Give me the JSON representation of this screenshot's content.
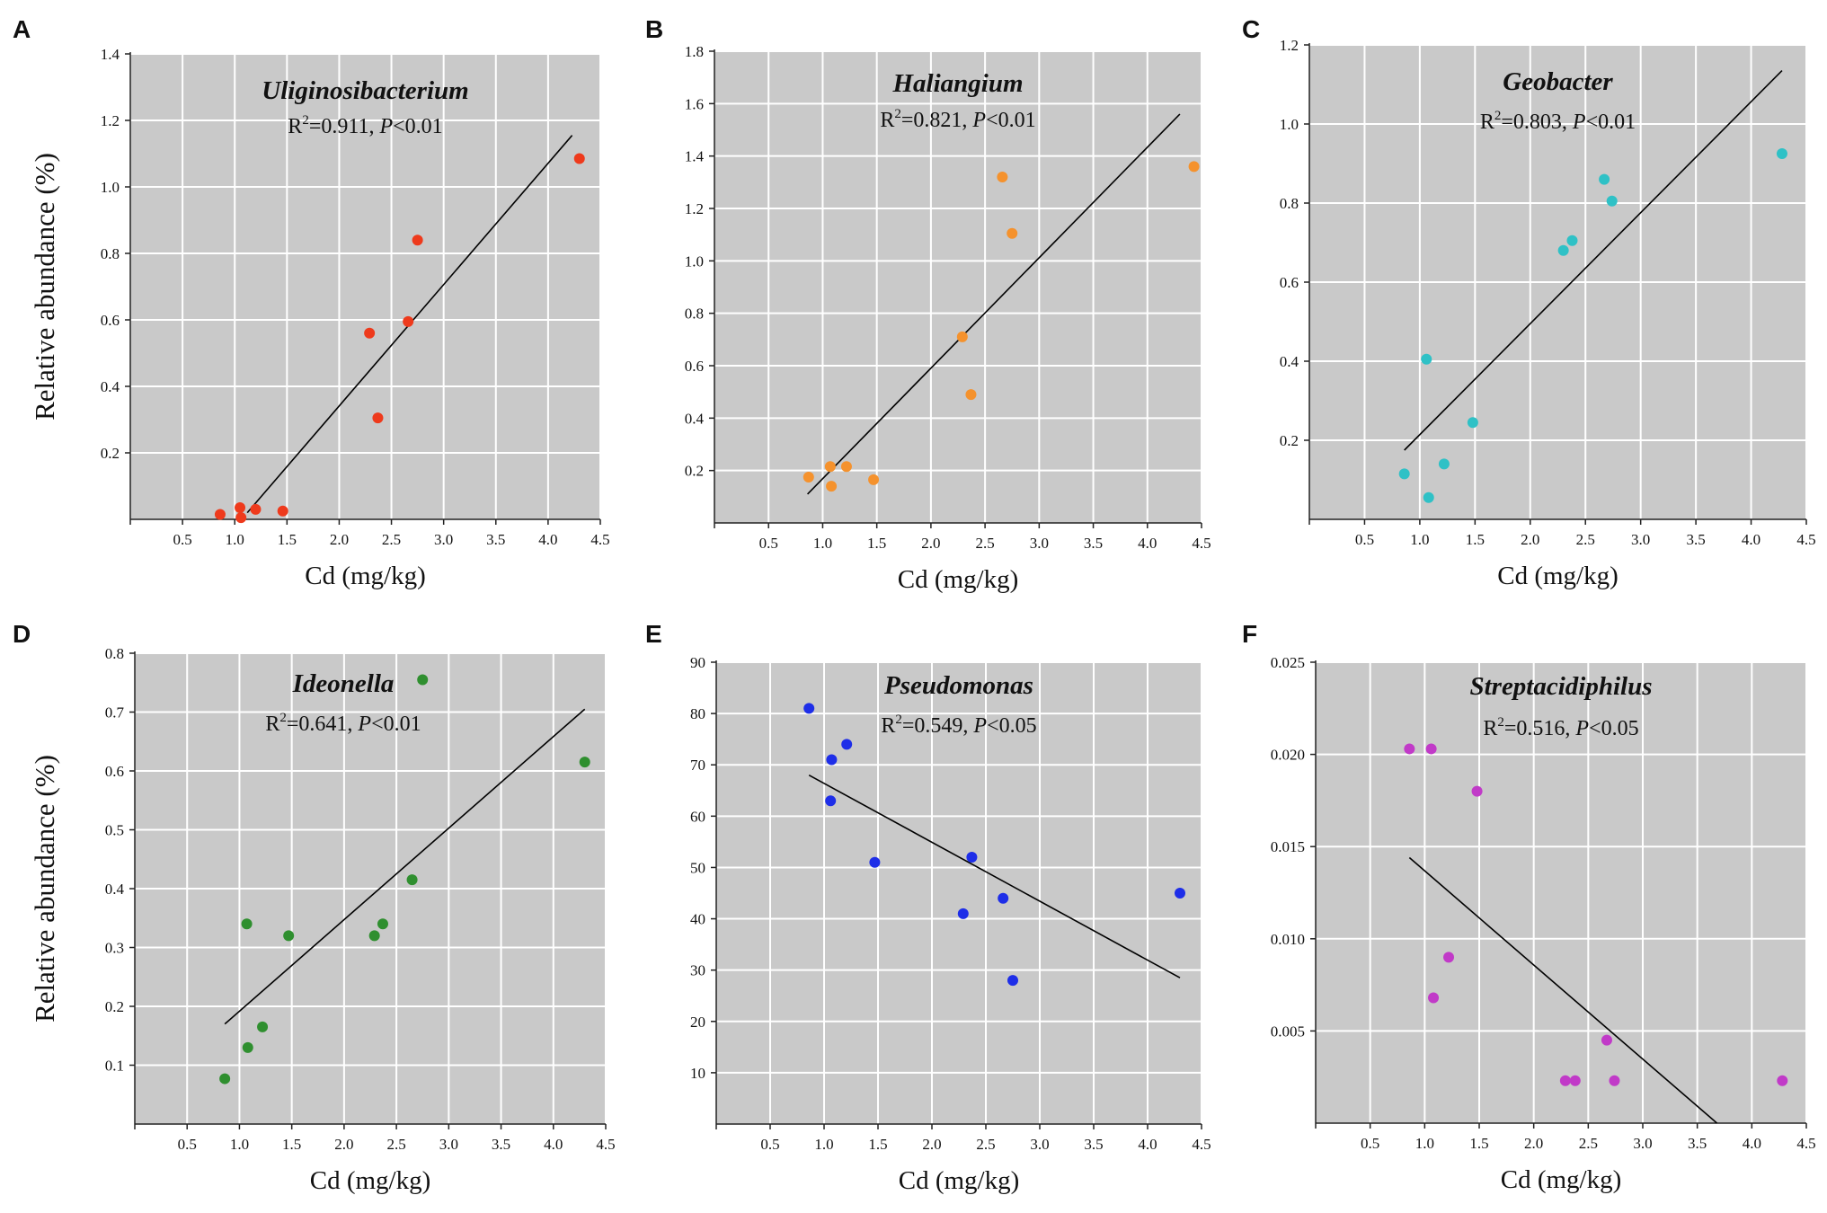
{
  "figure": {
    "shared_ylabel": "Relative abundance (%)"
  },
  "chart_data": [
    {
      "panel": "A",
      "type": "scatter",
      "title": "Uliginosibacterium",
      "stats": {
        "r2": "0.911",
        "p": "<0.01"
      },
      "xlabel": "Cd (mg/kg)",
      "ylabel": "Relative abundance (%)",
      "xlim": [
        0,
        4.5
      ],
      "ylim": [
        0,
        1.4
      ],
      "xticks": [
        0.5,
        1.0,
        1.5,
        2.0,
        2.5,
        3.0,
        3.5,
        4.0,
        4.5
      ],
      "xtick_labels": [
        "0.5",
        "1.0",
        "1.5",
        "2.0",
        "2.5",
        "3.0",
        "3.5",
        "4.0",
        "4.5"
      ],
      "yticks": [
        0.2,
        0.4,
        0.6,
        0.8,
        1.0,
        1.2,
        1.4
      ],
      "ytick_labels": [
        "0.2",
        "0.4",
        "0.6",
        "0.8",
        "1.0",
        "1.2",
        "1.4"
      ],
      "color": "#ee3a1c",
      "points": [
        [
          0.86,
          0.015
        ],
        [
          1.05,
          0.035
        ],
        [
          1.06,
          0.005
        ],
        [
          1.2,
          0.03
        ],
        [
          1.46,
          0.025
        ],
        [
          2.29,
          0.56
        ],
        [
          2.37,
          0.305
        ],
        [
          2.66,
          0.595
        ],
        [
          2.75,
          0.84
        ],
        [
          4.3,
          1.085
        ]
      ],
      "fit": [
        [
          1.12,
          0.02
        ],
        [
          4.23,
          1.155
        ]
      ]
    },
    {
      "panel": "B",
      "type": "scatter",
      "title": "Haliangium",
      "stats": {
        "r2": "0.821",
        "p": "<0.01"
      },
      "xlabel": "Cd (mg/kg)",
      "ylabel": "",
      "xlim": [
        0,
        4.5
      ],
      "ylim": [
        0,
        1.8
      ],
      "xticks": [
        0.5,
        1.0,
        1.5,
        2.0,
        2.5,
        3.0,
        3.5,
        4.0,
        4.5
      ],
      "xtick_labels": [
        "0.5",
        "1.0",
        "1.5",
        "2.0",
        "2.5",
        "3.0",
        "3.5",
        "4.0",
        "4.5"
      ],
      "yticks": [
        0.2,
        0.4,
        0.6,
        0.8,
        1.0,
        1.2,
        1.4,
        1.6,
        1.8
      ],
      "ytick_labels": [
        "0.2",
        "0.4",
        "0.6",
        "0.8",
        "1.0",
        "1.2",
        "1.4",
        "1.6",
        "1.8"
      ],
      "color": "#f5922d",
      "points": [
        [
          0.87,
          0.175
        ],
        [
          1.07,
          0.215
        ],
        [
          1.08,
          0.14
        ],
        [
          1.22,
          0.215
        ],
        [
          1.47,
          0.165
        ],
        [
          2.29,
          0.71
        ],
        [
          2.37,
          0.49
        ],
        [
          2.66,
          1.32
        ],
        [
          2.75,
          1.105
        ],
        [
          4.43,
          1.36
        ]
      ],
      "fit": [
        [
          0.86,
          0.11
        ],
        [
          4.3,
          1.56
        ]
      ]
    },
    {
      "panel": "C",
      "type": "scatter",
      "title": "Geobacter",
      "stats": {
        "r2": "0.803",
        "p": "<0.01"
      },
      "xlabel": "Cd (mg/kg)",
      "ylabel": "",
      "xlim": [
        0,
        4.5
      ],
      "ylim": [
        0,
        1.2
      ],
      "xticks": [
        0.5,
        1.0,
        1.5,
        2.0,
        2.5,
        3.0,
        3.5,
        4.0,
        4.5
      ],
      "xtick_labels": [
        "0.5",
        "1.0",
        "1.5",
        "2.0",
        "2.5",
        "3.0",
        "3.5",
        "4.0",
        "4.5"
      ],
      "yticks": [
        0.2,
        0.4,
        0.6,
        0.8,
        1.0,
        1.2
      ],
      "ytick_labels": [
        "0.2",
        "0.4",
        "0.6",
        "0.8",
        "1.0",
        "1.2"
      ],
      "color": "#2fc1c6",
      "points": [
        [
          0.86,
          0.115
        ],
        [
          1.06,
          0.405
        ],
        [
          1.08,
          0.055
        ],
        [
          1.22,
          0.14
        ],
        [
          1.48,
          0.245
        ],
        [
          2.3,
          0.68
        ],
        [
          2.38,
          0.705
        ],
        [
          2.67,
          0.86
        ],
        [
          2.74,
          0.805
        ],
        [
          4.28,
          0.925
        ]
      ],
      "fit": [
        [
          0.86,
          0.175
        ],
        [
          4.28,
          1.135
        ]
      ]
    },
    {
      "panel": "D",
      "type": "scatter",
      "title": "Ideonella",
      "stats": {
        "r2": "0.641",
        "p": "<0.01"
      },
      "xlabel": "Cd (mg/kg)",
      "ylabel": "Relative abundance (%)",
      "xlim": [
        0,
        4.5
      ],
      "ylim": [
        0,
        0.8
      ],
      "xticks": [
        0.5,
        1.0,
        1.5,
        2.0,
        2.5,
        3.0,
        3.5,
        4.0,
        4.5
      ],
      "xtick_labels": [
        "0.5",
        "1.0",
        "1.5",
        "2.0",
        "2.5",
        "3.0",
        "3.5",
        "4.0",
        "4.5"
      ],
      "yticks": [
        0.1,
        0.2,
        0.3,
        0.4,
        0.5,
        0.6,
        0.7,
        0.8
      ],
      "ytick_labels": [
        "0.1",
        "0.2",
        "0.3",
        "0.4",
        "0.5",
        "0.6",
        "0.7",
        "0.8"
      ],
      "color": "#2f8f2f",
      "points": [
        [
          0.86,
          0.077
        ],
        [
          1.07,
          0.34
        ],
        [
          1.08,
          0.13
        ],
        [
          1.22,
          0.165
        ],
        [
          1.47,
          0.32
        ],
        [
          2.29,
          0.32
        ],
        [
          2.37,
          0.34
        ],
        [
          2.65,
          0.415
        ],
        [
          2.75,
          0.755
        ],
        [
          4.3,
          0.615
        ]
      ],
      "fit": [
        [
          0.86,
          0.17
        ],
        [
          4.3,
          0.705
        ]
      ]
    },
    {
      "panel": "E",
      "type": "scatter",
      "title": "Pseudomonas",
      "stats": {
        "r2": "0.549",
        "p": "<0.05"
      },
      "xlabel": "Cd (mg/kg)",
      "ylabel": "",
      "xlim": [
        0,
        4.5
      ],
      "ylim": [
        0,
        90
      ],
      "xticks": [
        0.5,
        1.0,
        1.5,
        2.0,
        2.5,
        3.0,
        3.5,
        4.0,
        4.5
      ],
      "xtick_labels": [
        "0.5",
        "1.0",
        "1.5",
        "2.0",
        "2.5",
        "3.0",
        "3.5",
        "4.0",
        "4.5"
      ],
      "yticks": [
        10,
        20,
        30,
        40,
        50,
        60,
        70,
        80,
        90
      ],
      "ytick_labels": [
        "10",
        "20",
        "30",
        "40",
        "50",
        "60",
        "70",
        "80",
        "90"
      ],
      "color": "#1e2ee8",
      "points": [
        [
          0.86,
          81
        ],
        [
          1.06,
          63
        ],
        [
          1.07,
          71
        ],
        [
          1.21,
          74
        ],
        [
          1.47,
          51
        ],
        [
          2.29,
          41
        ],
        [
          2.37,
          52
        ],
        [
          2.66,
          44
        ],
        [
          2.75,
          28
        ],
        [
          4.3,
          45
        ]
      ],
      "fit": [
        [
          0.86,
          68
        ],
        [
          4.3,
          28.5
        ]
      ]
    },
    {
      "panel": "F",
      "type": "scatter",
      "title": "Streptacidiphilus",
      "stats": {
        "r2": "0.516",
        "p": "<0.05"
      },
      "xlabel": "Cd (mg/kg)",
      "ylabel": "",
      "xlim": [
        0,
        4.5
      ],
      "ylim": [
        0,
        0.025
      ],
      "xticks": [
        0.5,
        1.0,
        1.5,
        2.0,
        2.5,
        3.0,
        3.5,
        4.0,
        4.5
      ],
      "xtick_labels": [
        "0.5",
        "1.0",
        "1.5",
        "2.0",
        "2.5",
        "3.0",
        "3.5",
        "4.0",
        "4.5"
      ],
      "yticks": [
        0.005,
        0.01,
        0.015,
        0.02,
        0.025
      ],
      "ytick_labels": [
        "0.005",
        "0.010",
        "0.015",
        "0.020",
        "0.025"
      ],
      "color": "#c13ac8",
      "points": [
        [
          0.86,
          0.0203
        ],
        [
          1.06,
          0.0203
        ],
        [
          1.08,
          0.0068
        ],
        [
          1.22,
          0.009
        ],
        [
          1.48,
          0.018
        ],
        [
          2.29,
          0.0023
        ],
        [
          2.38,
          0.0023
        ],
        [
          2.67,
          0.0045
        ],
        [
          2.74,
          0.0023
        ],
        [
          4.28,
          0.0023
        ]
      ],
      "fit": [
        [
          0.86,
          0.0144
        ],
        [
          3.68,
          0.0
        ]
      ]
    }
  ]
}
